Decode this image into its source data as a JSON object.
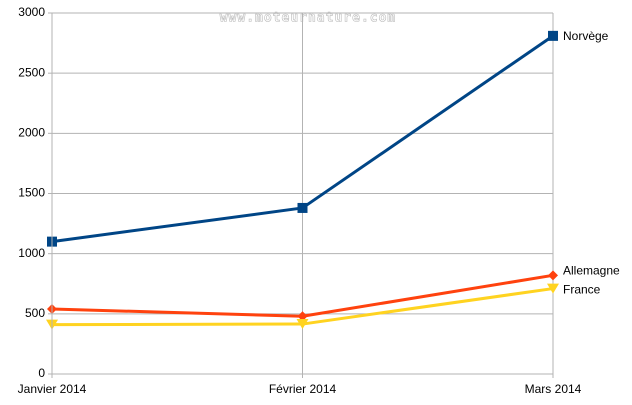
{
  "chart_data": {
    "type": "line",
    "annotation": "www.moteurnature.com",
    "categories": [
      "Janvier 2014",
      "Février 2014",
      "Mars 2014"
    ],
    "series": [
      {
        "name": "Norvège",
        "color": "#004586",
        "marker": "square",
        "values": [
          1100,
          1380,
          2810
        ]
      },
      {
        "name": "Allemagne",
        "color": "#ff420e",
        "marker": "diamond",
        "values": [
          540,
          480,
          820
        ]
      },
      {
        "name": "France",
        "color": "#ffd320",
        "marker": "triangle-down",
        "values": [
          410,
          415,
          710
        ]
      }
    ],
    "ylim": [
      0,
      3000
    ],
    "yticks": [
      0,
      500,
      1000,
      1500,
      2000,
      2500,
      3000
    ],
    "grid": true
  }
}
